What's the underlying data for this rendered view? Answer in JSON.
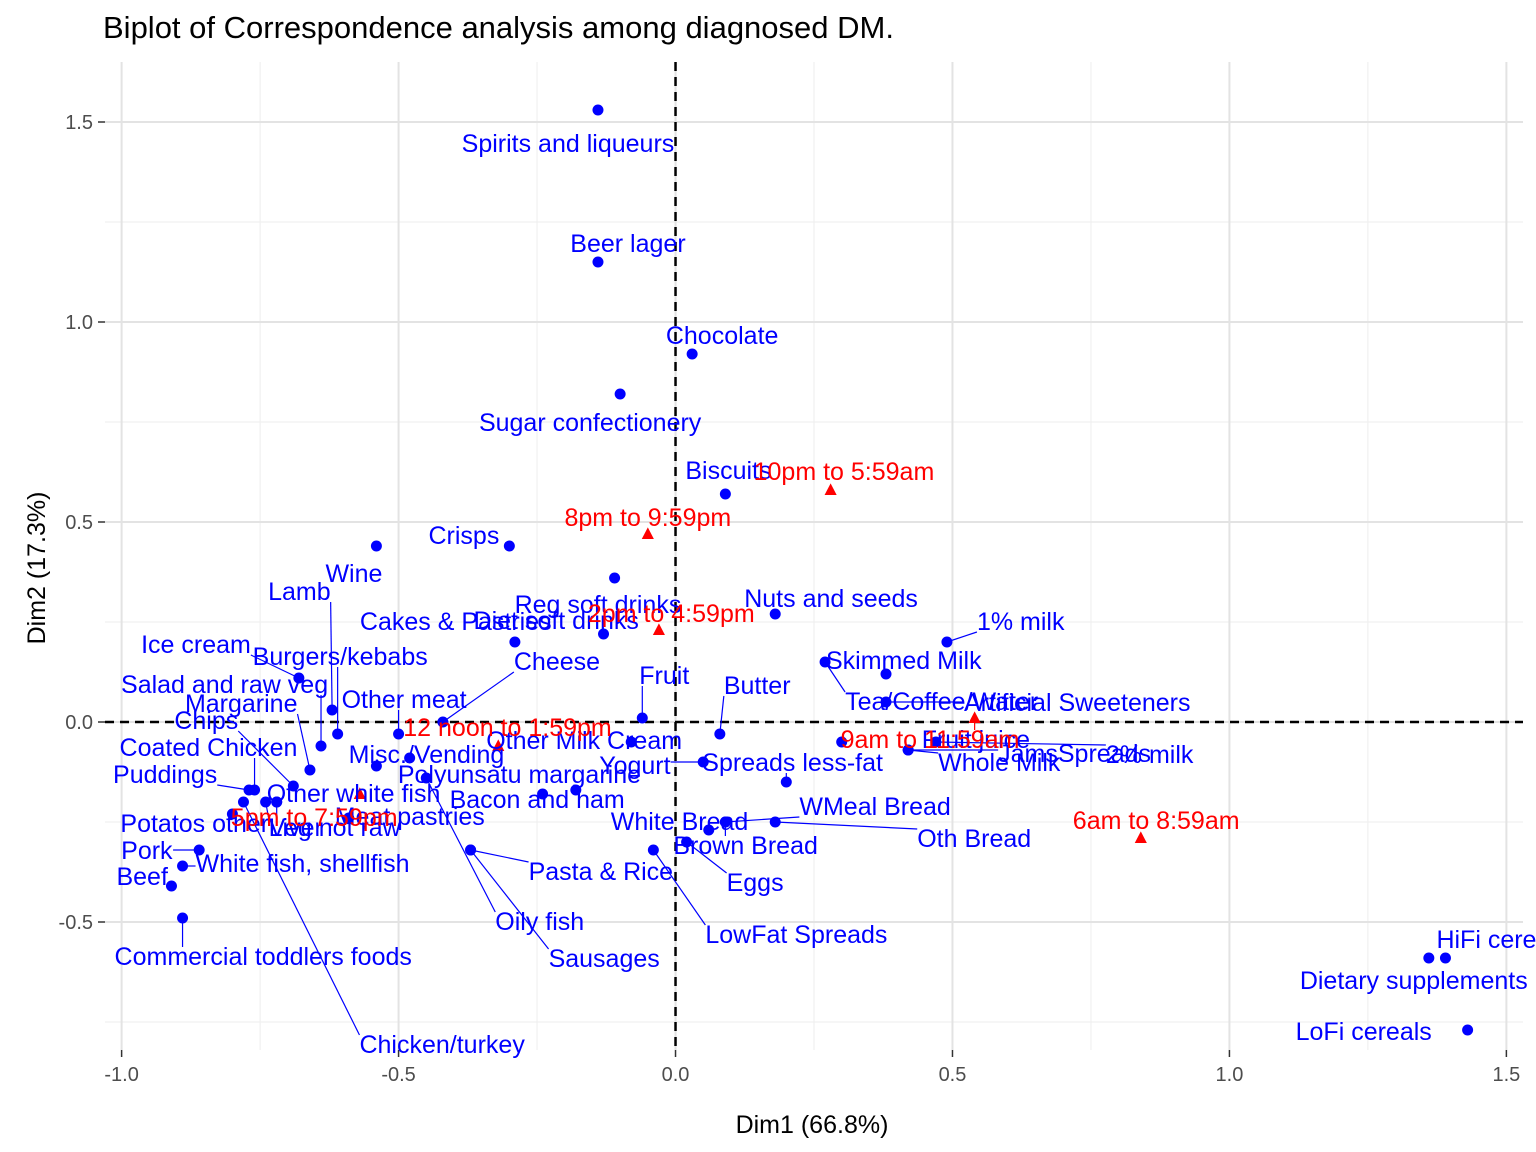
{
  "chart_data": {
    "type": "scatter",
    "title": "Biplot of Correspondence analysis among diagnosed DM.",
    "xlabel": "Dim1 (66.8%)",
    "ylabel": "Dim2 (17.3%)",
    "xlim": [
      -1.03,
      1.53
    ],
    "ylim": [
      -0.82,
      1.65
    ],
    "xticks": [
      -1.0,
      -0.5,
      0.0,
      0.5,
      1.0,
      1.5
    ],
    "xtick_labels": [
      "-1.0",
      "-0.5",
      "0.0",
      "0.5",
      "1.0",
      "1.5"
    ],
    "yticks": [
      -0.5,
      0.0,
      0.5,
      1.0,
      1.5
    ],
    "ytick_labels": [
      "-0.5",
      "0.0",
      "0.5",
      "1.0",
      "1.5"
    ],
    "grid": true,
    "reference_lines": {
      "x": 0,
      "y": 0,
      "style": "dashed"
    },
    "colors": {
      "food": "#0000ff",
      "time": "#ff0000"
    },
    "series": [
      {
        "name": "Food groups",
        "marker": "circle",
        "color": "#0000ff",
        "points": [
          {
            "label": "Spirits and liqueurs",
            "x": -0.14,
            "y": 1.53
          },
          {
            "label": "Beer lager",
            "x": -0.14,
            "y": 1.15
          },
          {
            "label": "Chocolate",
            "x": 0.03,
            "y": 0.92
          },
          {
            "label": "Sugar confectionery",
            "x": -0.1,
            "y": 0.82
          },
          {
            "label": "Biscuits",
            "x": 0.09,
            "y": 0.57
          },
          {
            "label": "Crisps",
            "x": -0.3,
            "y": 0.44
          },
          {
            "label": "Wine",
            "x": -0.54,
            "y": 0.44
          },
          {
            "label": "Reg soft drinks",
            "x": -0.11,
            "y": 0.36
          },
          {
            "label": "Diet soft drinks",
            "x": -0.13,
            "y": 0.22
          },
          {
            "label": "Nuts and seeds",
            "x": 0.18,
            "y": 0.27
          },
          {
            "label": "Cakes & Pastries",
            "x": -0.29,
            "y": 0.2
          },
          {
            "label": "Tea/Coffee/Water",
            "x": 0.27,
            "y": 0.15
          },
          {
            "label": "1% milk",
            "x": 0.49,
            "y": 0.2
          },
          {
            "label": "Skimmed Milk",
            "x": 0.38,
            "y": 0.12
          },
          {
            "label": "Artificial Sweeteners",
            "x": 0.38,
            "y": 0.05
          },
          {
            "label": "Fruit",
            "x": -0.06,
            "y": 0.01
          },
          {
            "label": "Butter",
            "x": 0.08,
            "y": -0.03
          },
          {
            "label": "Fruit juice",
            "x": 0.3,
            "y": -0.05
          },
          {
            "label": "2% milk",
            "x": 0.47,
            "y": -0.05
          },
          {
            "label": "Whole Milk",
            "x": 0.42,
            "y": -0.07
          },
          {
            "label": "Ice cream",
            "x": -0.68,
            "y": 0.11
          },
          {
            "label": "Lamb",
            "x": -0.62,
            "y": 0.03
          },
          {
            "label": "Burgers/kebabs",
            "x": -0.61,
            "y": -0.03
          },
          {
            "label": "Salad and raw veg",
            "x": -0.64,
            "y": -0.06
          },
          {
            "label": "Cheese",
            "x": -0.42,
            "y": 0.0
          },
          {
            "label": "Other meat",
            "x": -0.5,
            "y": -0.03
          },
          {
            "label": "Other Milk Cream",
            "x": -0.08,
            "y": -0.05
          },
          {
            "label": "Margarine",
            "x": -0.66,
            "y": -0.12
          },
          {
            "label": "Chips",
            "x": -0.69,
            "y": -0.16
          },
          {
            "label": "Misc./Vending",
            "x": -0.48,
            "y": -0.09
          },
          {
            "label": "Polyunsatu margarine",
            "x": -0.18,
            "y": -0.17
          },
          {
            "label": "Yogurt",
            "x": 0.05,
            "y": -0.1
          },
          {
            "label": "Spreads less-fat",
            "x": 0.2,
            "y": -0.15
          },
          {
            "label": "Coated Chicken",
            "x": -0.76,
            "y": -0.17
          },
          {
            "label": "Puddings",
            "x": -0.77,
            "y": -0.17
          },
          {
            "label": "Other white fish",
            "x": -0.72,
            "y": -0.2
          },
          {
            "label": "Misc fish",
            "x": -0.54,
            "y": -0.11
          },
          {
            "label": "White Bread",
            "x": 0.06,
            "y": -0.27
          },
          {
            "label": "WMeal Bread",
            "x": 0.09,
            "y": -0.25
          },
          {
            "label": "JamsSpreads",
            "x": 0.42,
            "y": -0.07
          },
          {
            "label": "Potatos other",
            "x": -0.8,
            "y": -0.23
          },
          {
            "label": "Meat pastries",
            "x": -0.59,
            "y": -0.24
          },
          {
            "label": "Bacon and ham",
            "x": -0.24,
            "y": -0.18
          },
          {
            "label": "Oth Bread",
            "x": 0.18,
            "y": -0.25
          },
          {
            "label": "Brown Bread",
            "x": 0.09,
            "y": -0.25
          },
          {
            "label": "Pork",
            "x": -0.86,
            "y": -0.32
          },
          {
            "label": "Liver",
            "x": -0.74,
            "y": -0.2
          },
          {
            "label": "Veg not raw",
            "x": -0.72,
            "y": -0.2
          },
          {
            "label": "Pasta & Rice",
            "x": -0.37,
            "y": -0.32
          },
          {
            "label": "Eggs",
            "x": 0.02,
            "y": -0.3
          },
          {
            "label": "Beef",
            "x": -0.91,
            "y": -0.41
          },
          {
            "label": "White fish, shellfish",
            "x": -0.89,
            "y": -0.36
          },
          {
            "label": "Oily fish",
            "x": -0.45,
            "y": -0.14
          },
          {
            "label": "LowFat Spreads",
            "x": -0.04,
            "y": -0.32
          },
          {
            "label": "Commercial toddlers foods",
            "x": -0.89,
            "y": -0.49
          },
          {
            "label": "Sausages",
            "x": -0.37,
            "y": -0.32
          },
          {
            "label": "Chicken/turkey",
            "x": -0.78,
            "y": -0.2
          },
          {
            "label": "HiFi cereals",
            "x": 1.39,
            "y": -0.59
          },
          {
            "label": "Dietary supplements",
            "x": 1.36,
            "y": -0.59
          },
          {
            "label": "LoFi cereals",
            "x": 1.43,
            "y": -0.77
          }
        ]
      },
      {
        "name": "Time of day",
        "marker": "triangle",
        "color": "#ff0000",
        "points": [
          {
            "label": "10pm to 5:59am",
            "x": 0.28,
            "y": 0.58
          },
          {
            "label": "8pm to 9:59pm",
            "x": -0.05,
            "y": 0.47
          },
          {
            "label": "2pm to 4:59pm",
            "x": -0.03,
            "y": 0.23
          },
          {
            "label": "12 noon to 1:59pm",
            "x": -0.32,
            "y": -0.06
          },
          {
            "label": "9am to 11:59am",
            "x": 0.54,
            "y": 0.01
          },
          {
            "label": "5pm to 7:59pm",
            "x": -0.57,
            "y": -0.18
          },
          {
            "label": "6am to 8:59am",
            "x": 0.84,
            "y": -0.29
          }
        ]
      }
    ]
  }
}
